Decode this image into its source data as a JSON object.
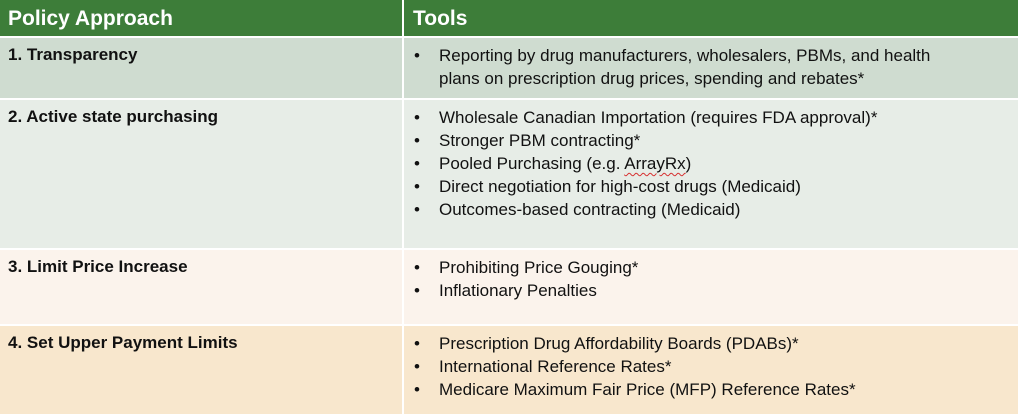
{
  "header": {
    "col1": "Policy Approach",
    "col2": "Tools"
  },
  "rows": [
    {
      "approach": "1. Transparency",
      "tools": [
        "Reporting by drug manufacturers, wholesalers, PBMs, and health",
        "plans on prescription drug prices, spending and rebates*"
      ],
      "bullets": [
        "•",
        ""
      ]
    },
    {
      "approach": "2. Active state purchasing",
      "tools": [
        "Wholesale Canadian Importation (requires FDA approval)*",
        "Stronger PBM contracting*",
        "Pooled Purchasing (e.g. ArrayRx)",
        "Direct negotiation for high-cost drugs (Medicaid)",
        "Outcomes-based contracting (Medicaid)"
      ],
      "bullets": [
        "•",
        "•",
        "•",
        "•",
        "•"
      ]
    },
    {
      "approach": "3. Limit Price Increase",
      "tools": [
        "Prohibiting Price Gouging*",
        "Inflationary Penalties"
      ],
      "bullets": [
        "•",
        "•"
      ]
    },
    {
      "approach": "4. Set Upper Payment Limits",
      "tools": [
        "Prescription Drug Affordability Boards (PDABs)*",
        "International Reference Rates*",
        "Medicare Maximum Fair Price (MFP) Reference Rates*"
      ],
      "bullets": [
        "•",
        "•",
        "•"
      ]
    }
  ],
  "colors": {
    "header_bg": "#3d7d39",
    "row1_bg": "#cfdcd0",
    "row2_bg": "#e7ede7",
    "row3_bg": "#fbf3ec",
    "row4_bg": "#f8e7cd",
    "spellcheck_underline": "#d62f2f"
  }
}
